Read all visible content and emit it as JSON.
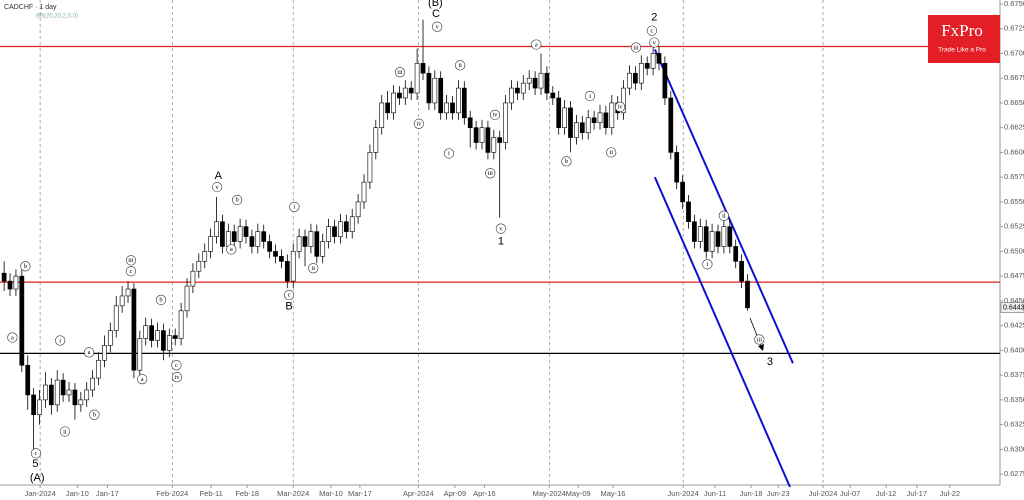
{
  "chart_data": {
    "type": "candlestick",
    "title": "CADCHF · 1 day",
    "subtitle": "BB(20,20,2,0,0)",
    "logo": {
      "name": "FxPro",
      "tagline": "Trade Like a Pro"
    },
    "ylim": [
      0.6264,
      0.6754
    ],
    "yticks": [
      {
        "value": 0.675,
        "label": "0.67500"
      },
      {
        "value": 0.6725,
        "label": "0.67250"
      },
      {
        "value": 0.67,
        "label": "0.67000"
      },
      {
        "value": 0.6675,
        "label": "0.66750"
      },
      {
        "value": 0.665,
        "label": "0.66500"
      },
      {
        "value": 0.6625,
        "label": "0.66250"
      },
      {
        "value": 0.66,
        "label": "0.66000"
      },
      {
        "value": 0.6575,
        "label": "0.65750"
      },
      {
        "value": 0.655,
        "label": "0.65500"
      },
      {
        "value": 0.6525,
        "label": "0.65250"
      },
      {
        "value": 0.65,
        "label": "0.65000"
      },
      {
        "value": 0.6475,
        "label": "0.64750"
      },
      {
        "value": 0.645,
        "label": "0.64500"
      },
      {
        "value": 0.6425,
        "label": "0.64250"
      },
      {
        "value": 0.64,
        "label": "0.64000"
      },
      {
        "value": 0.6375,
        "label": "0.63750"
      },
      {
        "value": 0.635,
        "label": "0.63500"
      },
      {
        "value": 0.6325,
        "label": "0.63250"
      },
      {
        "value": 0.63,
        "label": "0.63000"
      },
      {
        "value": 0.6275,
        "label": "0.62750"
      }
    ],
    "xlim": [
      -0.7,
      168.8
    ],
    "xticks": [
      {
        "value": 6.1,
        "label": "Jan-2024"
      },
      {
        "value": 12.4,
        "label": "Jan-10"
      },
      {
        "value": 17.5,
        "label": "Jan-17"
      },
      {
        "value": 28.5,
        "label": "Feb-2024"
      },
      {
        "value": 35.1,
        "label": "Feb-11"
      },
      {
        "value": 41.2,
        "label": "Feb-18"
      },
      {
        "value": 49,
        "label": "Mar-2024"
      },
      {
        "value": 55.4,
        "label": "Mar-10"
      },
      {
        "value": 60.3,
        "label": "Mar-17"
      },
      {
        "value": 70.2,
        "label": "Apr-2024"
      },
      {
        "value": 76.4,
        "label": "Apr-09"
      },
      {
        "value": 81.4,
        "label": "Apr-16"
      },
      {
        "value": 92.4,
        "label": "May-2024"
      },
      {
        "value": 97.3,
        "label": "May-09"
      },
      {
        "value": 103.2,
        "label": "May-16"
      },
      {
        "value": 115.1,
        "label": "Jun-2024"
      },
      {
        "value": 120.5,
        "label": "Jun-11"
      },
      {
        "value": 126.6,
        "label": "Jun-18"
      },
      {
        "value": 131.2,
        "label": "Jun-23"
      },
      {
        "value": 138.8,
        "label": "Jul-2024"
      },
      {
        "value": 143.4,
        "label": "Jul-07"
      },
      {
        "value": 149.5,
        "label": "Jul-12"
      },
      {
        "value": 154.7,
        "label": "Jul-17"
      },
      {
        "value": 160.3,
        "label": "Jul-22"
      }
    ],
    "vlines": [
      6.1,
      28.5,
      49,
      70.2,
      92.4,
      115.1,
      138.8
    ],
    "levels": [
      {
        "value": 0.6707,
        "color": "#e02020"
      },
      {
        "value": 0.6469,
        "color": "#e02020"
      },
      {
        "value": 0.6397,
        "color": "#000000"
      }
    ],
    "channel": {
      "color": "#1010d0",
      "lines": [
        {
          "x": [
            110.3,
            133.7
          ],
          "y": [
            0.6704,
            0.6387
          ]
        },
        {
          "x": [
            110.3,
            133.2
          ],
          "y": [
            0.6575,
            0.6262
          ]
        }
      ]
    },
    "last": {
      "value": 0.64433,
      "label": "0.64433"
    },
    "up_color": "#ffffff",
    "down_color": "#000000",
    "candles": [
      [
        0.6478,
        0.649,
        0.646,
        0.647
      ],
      [
        0.647,
        0.6478,
        0.6455,
        0.6462
      ],
      [
        0.6462,
        0.6482,
        0.6455,
        0.6475
      ],
      [
        0.6475,
        0.6482,
        0.6378,
        0.6385
      ],
      [
        0.6385,
        0.6395,
        0.634,
        0.6355
      ],
      [
        0.6355,
        0.6362,
        0.6299,
        0.6335
      ],
      [
        0.6335,
        0.636,
        0.6325,
        0.635
      ],
      [
        0.635,
        0.6378,
        0.6342,
        0.6365
      ],
      [
        0.6365,
        0.6372,
        0.6335,
        0.6345
      ],
      [
        0.6345,
        0.638,
        0.6338,
        0.637
      ],
      [
        0.637,
        0.6377,
        0.6348,
        0.6355
      ],
      [
        0.6355,
        0.6368,
        0.6348,
        0.636
      ],
      [
        0.636,
        0.6367,
        0.633,
        0.6345
      ],
      [
        0.6345,
        0.6358,
        0.6338,
        0.635
      ],
      [
        0.635,
        0.6368,
        0.6343,
        0.636
      ],
      [
        0.636,
        0.638,
        0.6353,
        0.6372
      ],
      [
        0.6372,
        0.6398,
        0.6365,
        0.639
      ],
      [
        0.639,
        0.6415,
        0.6383,
        0.6405
      ],
      [
        0.6405,
        0.6428,
        0.6398,
        0.642
      ],
      [
        0.642,
        0.6455,
        0.6413,
        0.6445
      ],
      [
        0.6445,
        0.6465,
        0.6438,
        0.6455
      ],
      [
        0.6455,
        0.647,
        0.6448,
        0.6462
      ],
      [
        0.6462,
        0.6468,
        0.6372,
        0.638
      ],
      [
        0.638,
        0.642,
        0.6373,
        0.6412
      ],
      [
        0.6412,
        0.6433,
        0.6405,
        0.6425
      ],
      [
        0.6425,
        0.6432,
        0.6403,
        0.641
      ],
      [
        0.641,
        0.6428,
        0.6403,
        0.642
      ],
      [
        0.642,
        0.6427,
        0.639,
        0.64
      ],
      [
        0.64,
        0.6422,
        0.6393,
        0.6415
      ],
      [
        0.6415,
        0.6422,
        0.6405,
        0.6412
      ],
      [
        0.6412,
        0.6448,
        0.6405,
        0.644
      ],
      [
        0.644,
        0.6473,
        0.6433,
        0.6465
      ],
      [
        0.6465,
        0.6488,
        0.6458,
        0.648
      ],
      [
        0.648,
        0.6498,
        0.6473,
        0.649
      ],
      [
        0.649,
        0.6508,
        0.6483,
        0.65
      ],
      [
        0.65,
        0.6523,
        0.6493,
        0.6515
      ],
      [
        0.6515,
        0.6555,
        0.6508,
        0.653
      ],
      [
        0.653,
        0.6537,
        0.6498,
        0.6505
      ],
      [
        0.6505,
        0.6528,
        0.6498,
        0.652
      ],
      [
        0.652,
        0.6527,
        0.6503,
        0.651
      ],
      [
        0.651,
        0.6533,
        0.6503,
        0.6525
      ],
      [
        0.6525,
        0.6532,
        0.6508,
        0.6515
      ],
      [
        0.6515,
        0.6522,
        0.6498,
        0.6505
      ],
      [
        0.6505,
        0.6528,
        0.6498,
        0.652
      ],
      [
        0.652,
        0.6527,
        0.6503,
        0.651
      ],
      [
        0.651,
        0.6517,
        0.6493,
        0.65
      ],
      [
        0.65,
        0.6507,
        0.6488,
        0.6495
      ],
      [
        0.6495,
        0.6502,
        0.6483,
        0.649
      ],
      [
        0.649,
        0.6497,
        0.6463,
        0.647
      ],
      [
        0.647,
        0.6508,
        0.6463,
        0.65
      ],
      [
        0.65,
        0.6523,
        0.6493,
        0.6515
      ],
      [
        0.6515,
        0.6522,
        0.6485,
        0.6505
      ],
      [
        0.6505,
        0.6528,
        0.6498,
        0.652
      ],
      [
        0.652,
        0.6527,
        0.6488,
        0.6495
      ],
      [
        0.6495,
        0.6518,
        0.6488,
        0.651
      ],
      [
        0.651,
        0.6533,
        0.6503,
        0.6525
      ],
      [
        0.6525,
        0.6532,
        0.6508,
        0.6515
      ],
      [
        0.6515,
        0.6538,
        0.6508,
        0.653
      ],
      [
        0.653,
        0.6537,
        0.6513,
        0.652
      ],
      [
        0.652,
        0.6543,
        0.6513,
        0.6535
      ],
      [
        0.6535,
        0.6558,
        0.6528,
        0.655
      ],
      [
        0.655,
        0.6578,
        0.6543,
        0.657
      ],
      [
        0.657,
        0.6608,
        0.6563,
        0.66
      ],
      [
        0.66,
        0.6633,
        0.6593,
        0.6625
      ],
      [
        0.6625,
        0.6658,
        0.6618,
        0.665
      ],
      [
        0.665,
        0.6662,
        0.6633,
        0.664
      ],
      [
        0.664,
        0.6668,
        0.6633,
        0.666
      ],
      [
        0.666,
        0.6667,
        0.6648,
        0.6655
      ],
      [
        0.6655,
        0.6673,
        0.6648,
        0.6665
      ],
      [
        0.6665,
        0.6672,
        0.6653,
        0.666
      ],
      [
        0.666,
        0.6705,
        0.6653,
        0.669
      ],
      [
        0.669,
        0.6734,
        0.6673,
        0.668
      ],
      [
        0.668,
        0.6687,
        0.6643,
        0.665
      ],
      [
        0.665,
        0.6683,
        0.6643,
        0.6675
      ],
      [
        0.6675,
        0.6682,
        0.6633,
        0.664
      ],
      [
        0.664,
        0.6658,
        0.6633,
        0.665
      ],
      [
        0.665,
        0.6657,
        0.6633,
        0.664
      ],
      [
        0.664,
        0.6673,
        0.6633,
        0.6665
      ],
      [
        0.6665,
        0.6672,
        0.6628,
        0.6635
      ],
      [
        0.6635,
        0.6642,
        0.6605,
        0.6625
      ],
      [
        0.6625,
        0.6632,
        0.6603,
        0.661
      ],
      [
        0.661,
        0.6633,
        0.6603,
        0.6625
      ],
      [
        0.6625,
        0.6632,
        0.6593,
        0.66
      ],
      [
        0.66,
        0.6623,
        0.6593,
        0.6615
      ],
      [
        0.6615,
        0.6622,
        0.6534,
        0.661
      ],
      [
        0.661,
        0.6658,
        0.6603,
        0.665
      ],
      [
        0.665,
        0.6673,
        0.6643,
        0.6665
      ],
      [
        0.6665,
        0.6672,
        0.6653,
        0.666
      ],
      [
        0.666,
        0.6678,
        0.6653,
        0.667
      ],
      [
        0.667,
        0.6683,
        0.6663,
        0.6675
      ],
      [
        0.6675,
        0.6682,
        0.6658,
        0.6665
      ],
      [
        0.6665,
        0.67,
        0.6658,
        0.668
      ],
      [
        0.668,
        0.6687,
        0.6653,
        0.666
      ],
      [
        0.666,
        0.6667,
        0.6648,
        0.6655
      ],
      [
        0.6655,
        0.6662,
        0.6618,
        0.6625
      ],
      [
        0.6625,
        0.6653,
        0.6618,
        0.6645
      ],
      [
        0.6645,
        0.6652,
        0.66,
        0.6615
      ],
      [
        0.6615,
        0.6638,
        0.6608,
        0.663
      ],
      [
        0.663,
        0.6637,
        0.6613,
        0.662
      ],
      [
        0.662,
        0.6643,
        0.6613,
        0.6635
      ],
      [
        0.6635,
        0.6642,
        0.6623,
        0.663
      ],
      [
        0.663,
        0.6648,
        0.6623,
        0.664
      ],
      [
        0.664,
        0.6647,
        0.6618,
        0.6625
      ],
      [
        0.6625,
        0.6658,
        0.6618,
        0.665
      ],
      [
        0.665,
        0.6657,
        0.6633,
        0.664
      ],
      [
        0.664,
        0.6673,
        0.6633,
        0.6665
      ],
      [
        0.6665,
        0.6688,
        0.6658,
        0.668
      ],
      [
        0.668,
        0.6687,
        0.6663,
        0.667
      ],
      [
        0.667,
        0.6698,
        0.6663,
        0.669
      ],
      [
        0.669,
        0.6697,
        0.6678,
        0.6685
      ],
      [
        0.6685,
        0.6708,
        0.6678,
        0.67
      ],
      [
        0.67,
        0.6707,
        0.6683,
        0.669
      ],
      [
        0.669,
        0.6697,
        0.6648,
        0.6655
      ],
      [
        0.6655,
        0.6662,
        0.6593,
        0.66
      ],
      [
        0.66,
        0.6607,
        0.6563,
        0.657
      ],
      [
        0.657,
        0.6577,
        0.6543,
        0.655
      ],
      [
        0.655,
        0.6557,
        0.6523,
        0.653
      ],
      [
        0.653,
        0.6537,
        0.6503,
        0.651
      ],
      [
        0.651,
        0.6533,
        0.6503,
        0.6525
      ],
      [
        0.6525,
        0.6532,
        0.6493,
        0.65
      ],
      [
        0.65,
        0.6528,
        0.6493,
        0.652
      ],
      [
        0.652,
        0.6527,
        0.6498,
        0.6505
      ],
      [
        0.6505,
        0.6533,
        0.6498,
        0.6525
      ],
      [
        0.6525,
        0.6532,
        0.6498,
        0.6505
      ],
      [
        0.6505,
        0.6512,
        0.6483,
        0.649
      ],
      [
        0.649,
        0.6497,
        0.6463,
        0.647
      ],
      [
        0.647,
        0.6477,
        0.644,
        0.6443
      ]
    ],
    "annotations": [
      {
        "text": "(B)",
        "x": 73.1,
        "y": 0.6751
      },
      {
        "text": "C",
        "x": 73.2,
        "y": 0.674
      },
      {
        "text": "2",
        "x": 110.2,
        "y": 0.6736
      },
      {
        "text": "A",
        "x": 36.3,
        "y": 0.6576
      },
      {
        "text": "B",
        "x": 48.3,
        "y": 0.6444
      },
      {
        "text": "1",
        "x": 84.2,
        "y": 0.651
      },
      {
        "text": "3",
        "x": 129.8,
        "y": 0.6388
      },
      {
        "text": "5",
        "x": 5.3,
        "y": 0.6285
      },
      {
        "text": "(A)",
        "x": 5.6,
        "y": 0.6271
      },
      {
        "text": "v",
        "x": 36.1,
        "y": 0.6565,
        "circled": true
      },
      {
        "text": "b",
        "x": 39.5,
        "y": 0.6552,
        "circled": true
      },
      {
        "text": "a",
        "x": 38.5,
        "y": 0.6502,
        "circled": true
      },
      {
        "text": "iii",
        "x": 21.5,
        "y": 0.6491,
        "circled": true
      },
      {
        "text": "c",
        "x": 21.5,
        "y": 0.648,
        "circled": true
      },
      {
        "text": "b",
        "x": 3.6,
        "y": 0.6485,
        "circled": true
      },
      {
        "text": "a",
        "x": 1.4,
        "y": 0.6413,
        "circled": true
      },
      {
        "text": "i",
        "x": 9.5,
        "y": 0.641,
        "circled": true
      },
      {
        "text": "ii",
        "x": 10.3,
        "y": 0.6318,
        "circled": true
      },
      {
        "text": "c",
        "x": 5.4,
        "y": 0.6296,
        "circled": true
      },
      {
        "text": "b",
        "x": 15.3,
        "y": 0.6335,
        "circled": true
      },
      {
        "text": "a",
        "x": 14.4,
        "y": 0.6398,
        "circled": true
      },
      {
        "text": "b",
        "x": 26.6,
        "y": 0.6451,
        "circled": true
      },
      {
        "text": "a",
        "x": 23.4,
        "y": 0.6371,
        "circled": true
      },
      {
        "text": "c",
        "x": 29.2,
        "y": 0.6385,
        "circled": true
      },
      {
        "text": "iv",
        "x": 29.3,
        "y": 0.6373,
        "circled": true
      },
      {
        "text": "i",
        "x": 49.2,
        "y": 0.6545,
        "circled": true
      },
      {
        "text": "ii",
        "x": 52.4,
        "y": 0.6483,
        "circled": true
      },
      {
        "text": "c",
        "x": 48.3,
        "y": 0.6456,
        "circled": true
      },
      {
        "text": "iii",
        "x": 67.1,
        "y": 0.6681,
        "circled": true
      },
      {
        "text": "iv",
        "x": 70.3,
        "y": 0.6629,
        "circled": true
      },
      {
        "text": "v",
        "x": 73.4,
        "y": 0.6727,
        "circled": true
      },
      {
        "text": "ii",
        "x": 77.3,
        "y": 0.6688,
        "circled": true
      },
      {
        "text": "i",
        "x": 75.4,
        "y": 0.6599,
        "circled": true
      },
      {
        "text": "iv",
        "x": 83.2,
        "y": 0.6638,
        "circled": true
      },
      {
        "text": "iii",
        "x": 82.4,
        "y": 0.6579,
        "circled": true
      },
      {
        "text": "v",
        "x": 84.2,
        "y": 0.6523,
        "circled": true
      },
      {
        "text": "a",
        "x": 90.2,
        "y": 0.6709,
        "circled": true
      },
      {
        "text": "b",
        "x": 95.3,
        "y": 0.6591,
        "circled": true
      },
      {
        "text": "i",
        "x": 99.3,
        "y": 0.6657,
        "circled": true
      },
      {
        "text": "ii",
        "x": 102.9,
        "y": 0.66,
        "circled": true
      },
      {
        "text": "iii",
        "x": 107.1,
        "y": 0.6706,
        "circled": true
      },
      {
        "text": "iv",
        "x": 104.4,
        "y": 0.6646,
        "circled": true
      },
      {
        "text": "v",
        "x": 110.2,
        "y": 0.6711,
        "circled": true
      },
      {
        "text": "c",
        "x": 109.8,
        "y": 0.6723,
        "circled": true
      },
      {
        "text": "i",
        "x": 119.2,
        "y": 0.6487,
        "circled": true
      },
      {
        "text": "ii",
        "x": 122.0,
        "y": 0.6536,
        "circled": true
      },
      {
        "text": "iii",
        "x": 128.0,
        "y": 0.6411,
        "circled": true
      }
    ]
  }
}
